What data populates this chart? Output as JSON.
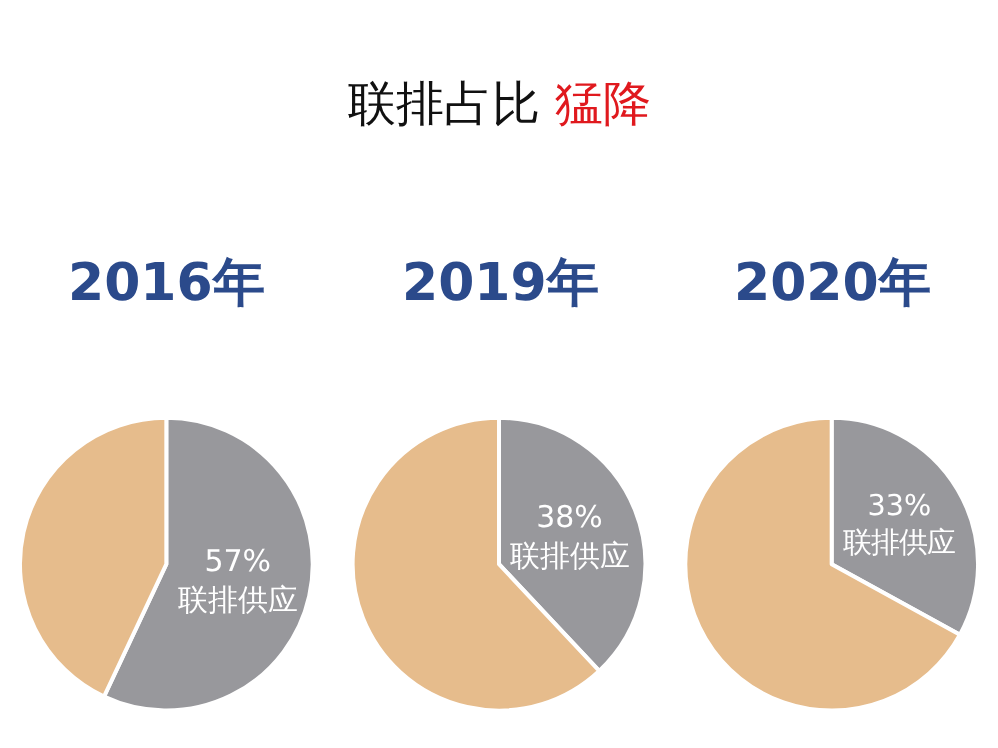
{
  "chart_data": [
    {
      "type": "other",
      "title": "联排占比 猛降"
    },
    {
      "type": "pie",
      "subtitle": "2016年",
      "categories": [
        "联排供应",
        null
      ],
      "values": [
        57,
        43
      ],
      "colors": [
        "#98989c",
        "#e6bc8c"
      ],
      "value_labels": [
        "57%",
        null
      ]
    },
    {
      "type": "pie",
      "subtitle": "2019年",
      "categories": [
        "联排供应",
        null
      ],
      "values": [
        38,
        62
      ],
      "colors": [
        "#98989c",
        "#e6bc8c"
      ],
      "value_labels": [
        "38%",
        null
      ]
    },
    {
      "type": "pie",
      "subtitle": "2020年",
      "categories": [
        "联排供应",
        null
      ],
      "values": [
        33,
        67
      ],
      "colors": [
        "#98989c",
        "#e6bc8c"
      ],
      "value_labels": [
        "33%",
        null
      ]
    }
  ]
}
